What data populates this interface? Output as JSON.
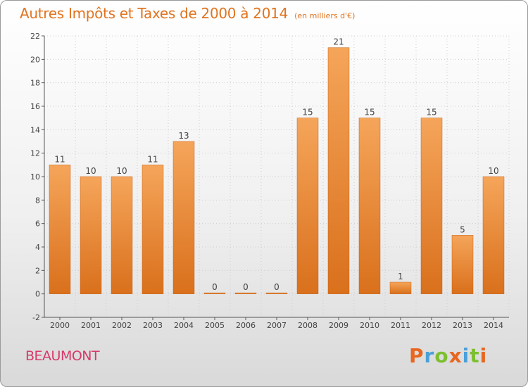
{
  "header": {
    "title": "Autres Impôts et Taxes de 2000 à 2014",
    "unit": "(en milliers d'€)"
  },
  "footer": {
    "commune": "BEAUMONT",
    "logo": "Proxiti"
  },
  "colors": {
    "bar_light": "#f5a55a",
    "bar_dark": "#d9701c",
    "title": "#e07420",
    "commune": "#d63a6a",
    "logo_letters": [
      "#e8661f",
      "#4aa0d8",
      "#7cbf2f",
      "#e8661f",
      "#4aa0d8",
      "#7cbf2f",
      "#e8661f"
    ]
  },
  "chart_data": {
    "type": "bar",
    "title": "Autres Impôts et Taxes de 2000 à 2014",
    "subtitle": "(en milliers d'€)",
    "xlabel": "",
    "ylabel": "",
    "categories": [
      "2000",
      "2001",
      "2002",
      "2003",
      "2004",
      "2005",
      "2006",
      "2007",
      "2008",
      "2009",
      "2010",
      "2011",
      "2012",
      "2013",
      "2014"
    ],
    "values": [
      11,
      10,
      10,
      11,
      13,
      0,
      0,
      0,
      15,
      21,
      15,
      1,
      15,
      5,
      10
    ],
    "ylim": [
      -2,
      22
    ],
    "yticks": [
      -2,
      0,
      2,
      4,
      6,
      8,
      10,
      12,
      14,
      16,
      18,
      20,
      22
    ],
    "grid": true,
    "legend": "none"
  }
}
